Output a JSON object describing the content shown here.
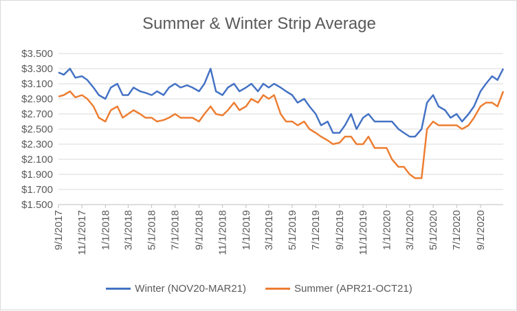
{
  "chart_data": {
    "type": "line",
    "title": "Summer & Winter Strip Average",
    "xlabel": "",
    "ylabel": "",
    "ylim": [
      1.5,
      3.5
    ],
    "y_ticks": [
      "$3.500",
      "$3.300",
      "$3.100",
      "$2.900",
      "$2.700",
      "$2.500",
      "$2.300",
      "$2.100",
      "$1.900",
      "$1.700",
      "$1.500"
    ],
    "x_ticks": [
      "9/1/2017",
      "11/1/2017",
      "1/1/2018",
      "3/1/2018",
      "5/1/2018",
      "7/1/2018",
      "9/1/2018",
      "11/1/2018",
      "1/1/2019",
      "3/1/2019",
      "5/1/2019",
      "7/1/2019",
      "9/1/2019",
      "11/1/2019",
      "1/1/2020",
      "3/1/2020",
      "5/1/2020",
      "7/1/2020",
      "9/1/2020"
    ],
    "grid": true,
    "legend_position": "bottom",
    "x": [
      "2017-09-01",
      "2017-09-15",
      "2017-10-01",
      "2017-10-15",
      "2017-11-01",
      "2017-11-15",
      "2017-12-01",
      "2017-12-15",
      "2018-01-01",
      "2018-01-15",
      "2018-02-01",
      "2018-02-15",
      "2018-03-01",
      "2018-03-15",
      "2018-04-01",
      "2018-04-15",
      "2018-05-01",
      "2018-05-15",
      "2018-06-01",
      "2018-06-15",
      "2018-07-01",
      "2018-07-15",
      "2018-08-01",
      "2018-08-15",
      "2018-09-01",
      "2018-09-15",
      "2018-10-01",
      "2018-10-15",
      "2018-11-01",
      "2018-11-15",
      "2018-12-01",
      "2018-12-15",
      "2019-01-01",
      "2019-01-15",
      "2019-02-01",
      "2019-02-15",
      "2019-03-01",
      "2019-03-15",
      "2019-04-01",
      "2019-04-15",
      "2019-05-01",
      "2019-05-15",
      "2019-06-01",
      "2019-06-15",
      "2019-07-01",
      "2019-07-15",
      "2019-08-01",
      "2019-08-15",
      "2019-09-01",
      "2019-09-15",
      "2019-10-01",
      "2019-10-15",
      "2019-11-01",
      "2019-11-15",
      "2019-12-01",
      "2019-12-15",
      "2020-01-01",
      "2020-01-15",
      "2020-02-01",
      "2020-02-15",
      "2020-03-01",
      "2020-03-15",
      "2020-04-01",
      "2020-04-15",
      "2020-05-01",
      "2020-05-15",
      "2020-06-01",
      "2020-06-15",
      "2020-07-01",
      "2020-07-15",
      "2020-08-01",
      "2020-08-15",
      "2020-09-01",
      "2020-09-15",
      "2020-10-01",
      "2020-10-15",
      "2020-10-30"
    ],
    "series": [
      {
        "name": "Winter (NOV20-MAR21)",
        "color": "#4472c4",
        "values": [
          3.25,
          3.22,
          3.3,
          3.18,
          3.2,
          3.15,
          3.05,
          2.95,
          2.9,
          3.05,
          3.1,
          2.95,
          2.95,
          3.05,
          3.0,
          2.98,
          2.95,
          3.0,
          2.95,
          3.05,
          3.1,
          3.05,
          3.08,
          3.05,
          3.0,
          3.1,
          3.3,
          3.0,
          2.95,
          3.05,
          3.1,
          3.0,
          3.05,
          3.1,
          3.0,
          3.1,
          3.05,
          3.1,
          3.05,
          3.0,
          2.95,
          2.85,
          2.9,
          2.8,
          2.7,
          2.55,
          2.6,
          2.45,
          2.45,
          2.55,
          2.7,
          2.5,
          2.65,
          2.7,
          2.6,
          2.6,
          2.6,
          2.6,
          2.5,
          2.45,
          2.4,
          2.4,
          2.5,
          2.85,
          2.95,
          2.8,
          2.75,
          2.65,
          2.7,
          2.6,
          2.7,
          2.8,
          3.0,
          3.1,
          3.2,
          3.15,
          3.3
        ]
      },
      {
        "name": "Summer  (APR21-OCT21)",
        "color": "#ed7d31",
        "values": [
          2.93,
          2.95,
          3.0,
          2.92,
          2.95,
          2.9,
          2.8,
          2.65,
          2.6,
          2.75,
          2.8,
          2.65,
          2.7,
          2.75,
          2.7,
          2.65,
          2.65,
          2.6,
          2.62,
          2.65,
          2.7,
          2.65,
          2.65,
          2.65,
          2.6,
          2.7,
          2.8,
          2.7,
          2.68,
          2.75,
          2.85,
          2.75,
          2.8,
          2.9,
          2.85,
          2.95,
          2.9,
          2.95,
          2.7,
          2.6,
          2.6,
          2.55,
          2.6,
          2.5,
          2.45,
          2.4,
          2.35,
          2.3,
          2.32,
          2.4,
          2.4,
          2.3,
          2.3,
          2.4,
          2.25,
          2.25,
          2.25,
          2.1,
          2.0,
          2.0,
          1.9,
          1.85,
          1.85,
          2.5,
          2.6,
          2.55,
          2.55,
          2.55,
          2.55,
          2.5,
          2.55,
          2.65,
          2.8,
          2.85,
          2.85,
          2.8,
          3.0
        ]
      }
    ]
  }
}
